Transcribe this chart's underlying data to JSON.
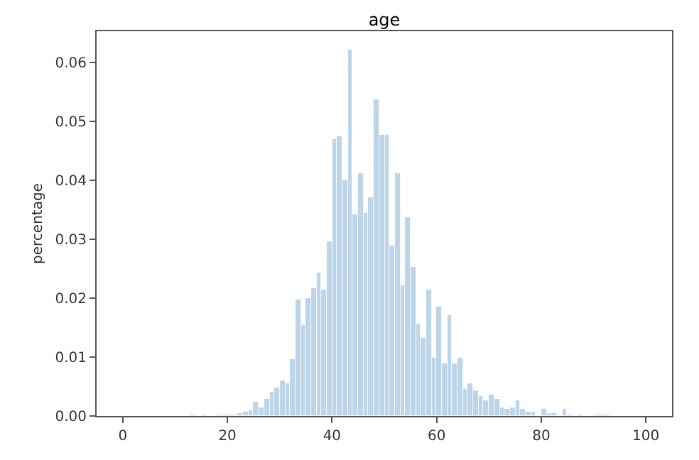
{
  "chart_data": {
    "type": "histogram",
    "title": "age",
    "ylabel": "percentage",
    "color": "#bcd5e8",
    "bins": [
      0,
      1,
      2,
      3,
      4,
      5,
      6,
      7,
      8,
      9,
      10,
      11,
      12,
      13,
      14,
      15,
      16,
      17,
      18,
      19,
      20,
      21,
      22,
      23,
      24,
      25,
      26,
      27,
      28,
      29,
      30,
      31,
      32,
      33,
      34,
      35,
      36,
      37,
      38,
      39,
      40,
      41,
      42,
      43,
      44,
      45,
      46,
      47,
      48,
      49,
      50,
      51,
      52,
      53,
      54,
      55,
      56,
      57,
      58,
      59,
      60,
      61,
      62,
      63,
      64,
      65,
      66,
      67,
      68,
      69,
      70,
      71,
      72,
      73,
      74,
      75,
      76,
      77,
      78,
      79,
      80,
      81,
      82,
      83,
      84,
      85,
      86,
      87,
      88,
      89,
      90,
      91,
      92,
      93,
      94,
      95,
      96,
      97,
      98,
      99,
      100
    ],
    "values": [
      0,
      0,
      0,
      0,
      0,
      0,
      0,
      0,
      0,
      0,
      0,
      0,
      0,
      0.0002,
      0,
      0.0002,
      0,
      0,
      0.0002,
      0.0002,
      0.0002,
      0.0003,
      0.0005,
      0.0008,
      0.001,
      0.0023,
      0.0015,
      0.003,
      0.0041,
      0.0048,
      0.006,
      0.0056,
      0.0096,
      0.0197,
      0.0154,
      0.0201,
      0.0216,
      0.0244,
      0.0214,
      0.0297,
      0.0469,
      0.0475,
      0.04,
      0.0622,
      0.0342,
      0.0413,
      0.0345,
      0.0371,
      0.0538,
      0.0477,
      0.0477,
      0.0289,
      0.0413,
      0.0222,
      0.0338,
      0.0252,
      0.0156,
      0.0133,
      0.0215,
      0.0098,
      0.0185,
      0.0089,
      0.0171,
      0.0089,
      0.0099,
      0.0046,
      0.0055,
      0.0044,
      0.0033,
      0.0027,
      0.0035,
      0.003,
      0.0015,
      0.0013,
      0.0015,
      0.0026,
      0.0012,
      0.0008,
      0.0008,
      0,
      0.0012,
      0.0004,
      0.0005,
      0,
      0.0011,
      0.0002,
      0,
      0.0002,
      0,
      0,
      0.0002,
      0.0002,
      0.0002,
      0,
      0,
      0,
      0,
      0,
      0,
      0
    ],
    "xlim": [
      -5,
      105
    ],
    "xticks": [
      0,
      20,
      40,
      60,
      80,
      100
    ],
    "ylim": [
      0,
      0.0653
    ],
    "yticks": [
      {
        "value": 0,
        "label": "0.00"
      },
      {
        "value": 0.01,
        "label": "0.01"
      },
      {
        "value": 0.02,
        "label": "0.02"
      },
      {
        "value": 0.03,
        "label": "0.03"
      },
      {
        "value": 0.04,
        "label": "0.04"
      },
      {
        "value": 0.05,
        "label": "0.05"
      },
      {
        "value": 0.06,
        "label": "0.06"
      }
    ],
    "grid": false,
    "legend": false
  }
}
